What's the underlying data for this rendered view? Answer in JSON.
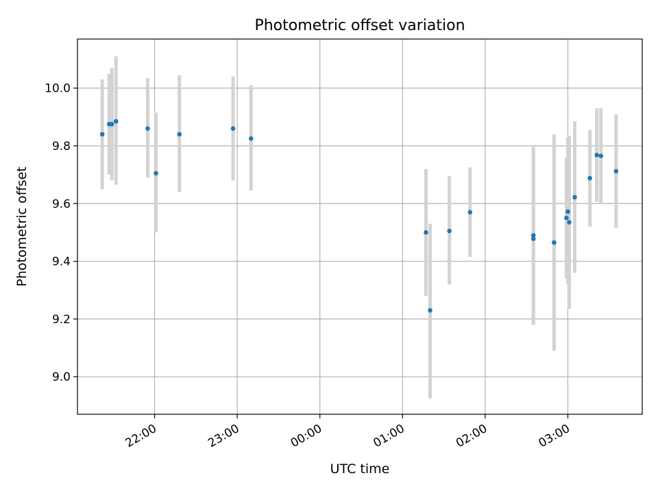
{
  "chart_data": {
    "type": "scatter",
    "title": "Photometric offset variation",
    "xlabel": "UTC time",
    "ylabel": "Photometric offset",
    "xlim": [
      "21:04",
      "03:54"
    ],
    "ylim": [
      8.87,
      10.17
    ],
    "x_ticks": [
      "22:00",
      "23:00",
      "00:00",
      "01:00",
      "02:00",
      "03:00"
    ],
    "y_ticks": [
      "9.0",
      "9.2",
      "9.4",
      "9.6",
      "9.8",
      "10.0"
    ],
    "grid": true,
    "errorbar_color": "#d3d3d3",
    "marker_color": "#1f77b4",
    "points": [
      {
        "x": "21:22",
        "y": 9.84,
        "ylo": 9.65,
        "yhi": 10.03
      },
      {
        "x": "21:27",
        "y": 9.875,
        "ylo": 9.7,
        "yhi": 10.05
      },
      {
        "x": "21:29",
        "y": 9.875,
        "ylo": 9.68,
        "yhi": 10.07
      },
      {
        "x": "21:32",
        "y": 9.885,
        "ylo": 9.665,
        "yhi": 10.11
      },
      {
        "x": "21:55",
        "y": 9.86,
        "ylo": 9.69,
        "yhi": 10.035
      },
      {
        "x": "22:01",
        "y": 9.705,
        "ylo": 9.5,
        "yhi": 9.915
      },
      {
        "x": "22:18",
        "y": 9.84,
        "ylo": 9.64,
        "yhi": 10.045
      },
      {
        "x": "22:57",
        "y": 9.86,
        "ylo": 9.68,
        "yhi": 10.04
      },
      {
        "x": "23:10",
        "y": 9.825,
        "ylo": 9.645,
        "yhi": 10.01
      },
      {
        "x": "01:17",
        "y": 9.5,
        "ylo": 9.28,
        "yhi": 9.72
      },
      {
        "x": "01:20",
        "y": 9.23,
        "ylo": 8.925,
        "yhi": 9.53
      },
      {
        "x": "01:34",
        "y": 9.505,
        "ylo": 9.32,
        "yhi": 9.695
      },
      {
        "x": "01:49",
        "y": 9.57,
        "ylo": 9.415,
        "yhi": 9.725
      },
      {
        "x": "02:35",
        "y": 9.49,
        "ylo": 9.18,
        "yhi": 9.8
      },
      {
        "x": "02:35",
        "y": 9.478,
        "ylo": 9.18,
        "yhi": 9.78
      },
      {
        "x": "02:50",
        "y": 9.465,
        "ylo": 9.1,
        "yhi": 9.835
      },
      {
        "x": "02:50",
        "y": 9.465,
        "ylo": 9.09,
        "yhi": 9.84
      },
      {
        "x": "02:59",
        "y": 9.55,
        "ylo": 9.34,
        "yhi": 9.76
      },
      {
        "x": "03:00",
        "y": 9.572,
        "ylo": 9.32,
        "yhi": 9.83
      },
      {
        "x": "03:01",
        "y": 9.535,
        "ylo": 9.235,
        "yhi": 9.835
      },
      {
        "x": "03:05",
        "y": 9.622,
        "ylo": 9.36,
        "yhi": 9.885
      },
      {
        "x": "03:16",
        "y": 9.688,
        "ylo": 9.52,
        "yhi": 9.855
      },
      {
        "x": "03:21",
        "y": 9.768,
        "ylo": 9.605,
        "yhi": 9.93
      },
      {
        "x": "03:24",
        "y": 9.765,
        "ylo": 9.6,
        "yhi": 9.93
      },
      {
        "x": "03:35",
        "y": 9.712,
        "ylo": 9.515,
        "yhi": 9.91
      }
    ]
  }
}
